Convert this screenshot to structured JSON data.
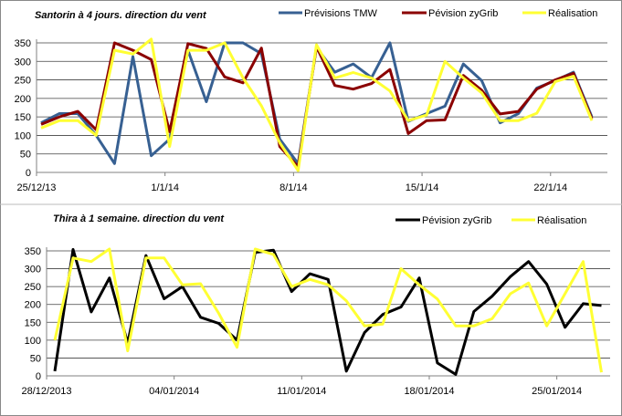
{
  "chart_data": [
    {
      "type": "line",
      "title": "Santorin à 4 jours. direction du vent",
      "xlabel": "",
      "ylabel": "",
      "ylim": [
        0,
        350
      ],
      "yticks": [
        0,
        50,
        100,
        150,
        200,
        250,
        300,
        350
      ],
      "grid": true,
      "legend": "top-right",
      "x": [
        0,
        1,
        2,
        3,
        4,
        5,
        6,
        7,
        8,
        9,
        10,
        11,
        12,
        13,
        14,
        15,
        16,
        17,
        18,
        19,
        20,
        21,
        22,
        23,
        24,
        25,
        26,
        27,
        28,
        29,
        30
      ],
      "x_unit": "days from 25/12/13",
      "xticks": [
        {
          "label": "25/12/13",
          "day": -0.25
        },
        {
          "label": "1/1/14",
          "day": 6.75
        },
        {
          "label": "8/1/14",
          "day": 13.75
        },
        {
          "label": "15/1/14",
          "day": 20.75
        },
        {
          "label": "22/1/14",
          "day": 27.75
        }
      ],
      "series": [
        {
          "name": "Prévisions TMW",
          "color": "#376092",
          "values": [
            134,
            159,
            159,
            100,
            24,
            313,
            45,
            90,
            330,
            191,
            350,
            350,
            321,
            90,
            24,
            338,
            271,
            293,
            256,
            350,
            138,
            159,
            179,
            293,
            248,
            134,
            159,
            228,
            248,
            271,
            150
          ]
        },
        {
          "name": "Pévision zyGrib",
          "color": "#8B0000",
          "values": [
            130,
            150,
            165,
            115,
            350,
            330,
            305,
            110,
            348,
            335,
            258,
            242,
            336,
            70,
            15,
            340,
            235,
            225,
            240,
            278,
            105,
            140,
            142,
            262,
            222,
            158,
            165,
            225,
            250,
            268,
            145
          ]
        },
        {
          "name": "Réalisation",
          "color": "#FFFF33",
          "values": [
            120,
            140,
            140,
            100,
            330,
            320,
            360,
            70,
            330,
            330,
            350,
            255,
            180,
            80,
            5,
            345,
            255,
            270,
            255,
            220,
            140,
            155,
            300,
            255,
            215,
            140,
            140,
            160,
            245,
            260,
            140
          ]
        }
      ]
    },
    {
      "type": "line",
      "title": "Thira à 1 semaine.  direction du vent",
      "xlabel": "",
      "ylabel": "",
      "ylim": [
        0,
        350
      ],
      "yticks": [
        0,
        50,
        100,
        150,
        200,
        250,
        300,
        350
      ],
      "grid": true,
      "legend": "top-right",
      "x": [
        0,
        1,
        2,
        3,
        4,
        5,
        6,
        7,
        8,
        9,
        10,
        11,
        12,
        13,
        14,
        15,
        16,
        17,
        18,
        19,
        20,
        21,
        22,
        23,
        24,
        25,
        26,
        27,
        28,
        29,
        30
      ],
      "x_unit": "days from 28/12/2013",
      "xticks": [
        {
          "label": "28/12/2013",
          "day": -0.45
        },
        {
          "label": "04/01/2014",
          "day": 6.55
        },
        {
          "label": "11/01/2014",
          "day": 13.55
        },
        {
          "label": "18/01/2014",
          "day": 20.55
        },
        {
          "label": "25/01/2014",
          "day": 27.55
        }
      ],
      "series": [
        {
          "name": "Pévision zyGrib",
          "color": "#000000",
          "values": [
            13,
            354,
            179,
            274,
            92,
            337,
            216,
            250,
            164,
            147,
            100,
            346,
            352,
            236,
            286,
            270,
            13,
            121,
            172,
            193,
            274,
            36,
            4,
            180,
            223,
            278,
            320,
            257,
            136,
            202,
            197
          ]
        },
        {
          "name": "Réalisation",
          "color": "#FFFF33",
          "values": [
            100,
            330,
            320,
            355,
            70,
            330,
            330,
            255,
            258,
            175,
            80,
            355,
            340,
            250,
            270,
            255,
            210,
            140,
            145,
            300,
            255,
            215,
            140,
            140,
            160,
            230,
            260,
            140,
            230,
            320,
            10
          ]
        }
      ]
    }
  ]
}
